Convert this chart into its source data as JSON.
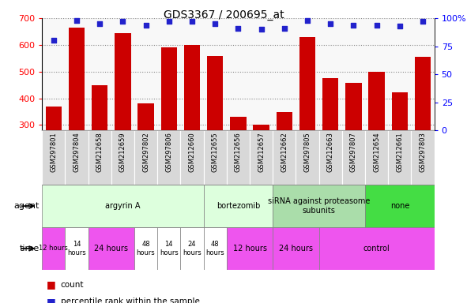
{
  "title": "GDS3367 / 200695_at",
  "samples": [
    "GSM297801",
    "GSM297804",
    "GSM212658",
    "GSM212659",
    "GSM297802",
    "GSM297806",
    "GSM212660",
    "GSM212655",
    "GSM212656",
    "GSM212657",
    "GSM212662",
    "GSM297805",
    "GSM212663",
    "GSM297807",
    "GSM212654",
    "GSM212661",
    "GSM297803"
  ],
  "counts": [
    370,
    665,
    448,
    645,
    380,
    590,
    600,
    557,
    332,
    302,
    348,
    628,
    475,
    457,
    500,
    422,
    555
  ],
  "percentiles": [
    80,
    98,
    95,
    97,
    94,
    97,
    97,
    95,
    91,
    90,
    91,
    98,
    95,
    94,
    94,
    93,
    97
  ],
  "ylim_left": [
    280,
    700
  ],
  "ylim_right": [
    0,
    100
  ],
  "yticks_left": [
    300,
    400,
    500,
    600,
    700
  ],
  "yticks_right": [
    0,
    25,
    50,
    75,
    100
  ],
  "bar_color": "#cc0000",
  "dot_color": "#2222cc",
  "agent_groups": [
    {
      "label": "argyrin A",
      "start": 0,
      "end": 7,
      "color": "#ddffdd"
    },
    {
      "label": "bortezomib",
      "start": 7,
      "end": 10,
      "color": "#ddffdd"
    },
    {
      "label": "siRNA against proteasome\nsubunits",
      "start": 10,
      "end": 14,
      "color": "#aaddaa"
    },
    {
      "label": "none",
      "start": 14,
      "end": 17,
      "color": "#44dd44"
    }
  ],
  "time_groups": [
    {
      "label": "12 hours",
      "start": 0,
      "end": 1,
      "color": "#ee55ee"
    },
    {
      "label": "14\nhours",
      "start": 1,
      "end": 2,
      "color": "#ffffff"
    },
    {
      "label": "24 hours",
      "start": 2,
      "end": 4,
      "color": "#ee55ee"
    },
    {
      "label": "48\nhours",
      "start": 4,
      "end": 5,
      "color": "#ffffff"
    },
    {
      "label": "14\nhours",
      "start": 5,
      "end": 6,
      "color": "#ffffff"
    },
    {
      "label": "24\nhours",
      "start": 6,
      "end": 7,
      "color": "#ffffff"
    },
    {
      "label": "48\nhours",
      "start": 7,
      "end": 8,
      "color": "#ffffff"
    },
    {
      "label": "12 hours",
      "start": 8,
      "end": 10,
      "color": "#ee55ee"
    },
    {
      "label": "24 hours",
      "start": 10,
      "end": 12,
      "color": "#ee55ee"
    },
    {
      "label": "control",
      "start": 12,
      "end": 17,
      "color": "#ee55ee"
    }
  ],
  "legend_count_color": "#cc0000",
  "legend_percentile_color": "#2222cc",
  "chart_bg": "#f8f8f8",
  "sample_box_color": "#d8d8d8"
}
